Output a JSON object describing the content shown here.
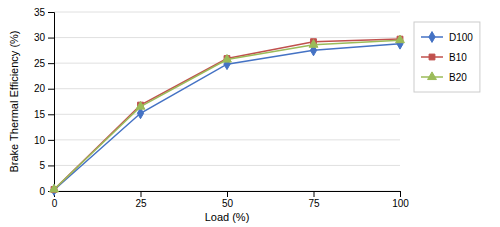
{
  "chart_data": {
    "type": "line",
    "x": [
      0,
      25,
      50,
      75,
      100
    ],
    "xlabel": "Load (%)",
    "ylabel": "Brake Thermal Efficiency (%)",
    "series": [
      {
        "name": "D100",
        "color": "#4472C4",
        "marker": "diamond",
        "values": [
          0.2,
          15.2,
          24.8,
          27.5,
          28.8
        ]
      },
      {
        "name": "B10",
        "color": "#C0504D",
        "marker": "square",
        "values": [
          0.3,
          16.8,
          25.9,
          29.2,
          29.7
        ]
      },
      {
        "name": "B20",
        "color": "#9BBB59",
        "marker": "triangle",
        "values": [
          0.3,
          16.5,
          25.7,
          28.6,
          29.5
        ]
      }
    ],
    "xlim": [
      0,
      100
    ],
    "ylim": [
      0,
      35
    ],
    "xticks": [
      0,
      25,
      50,
      75,
      100
    ],
    "yticks": [
      0,
      5,
      10,
      15,
      20,
      25,
      30,
      35
    ],
    "grid": true,
    "legend": "right"
  }
}
